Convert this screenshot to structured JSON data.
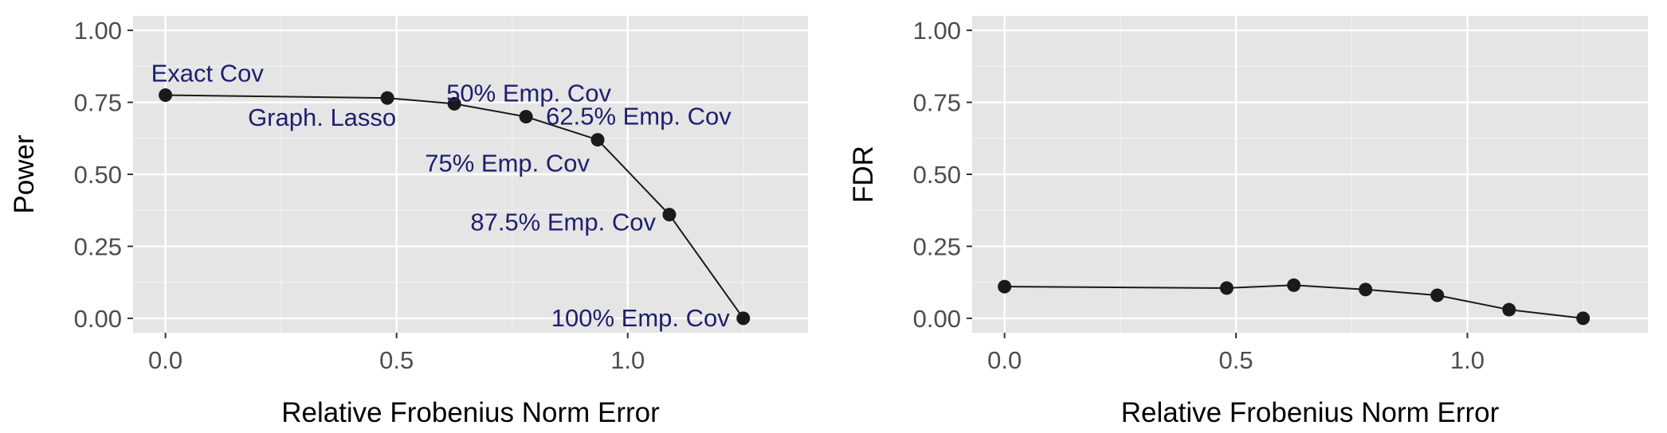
{
  "chart_data": [
    {
      "type": "line",
      "xlabel": "Relative Frobenius Norm Error",
      "ylabel": "Power",
      "xlim": [
        -0.07,
        1.39
      ],
      "ylim": [
        -0.05,
        1.05
      ],
      "xticks": [
        "0.0",
        "0.5",
        "1.0"
      ],
      "yticks": [
        "0.00",
        "0.25",
        "0.50",
        "0.75",
        "1.00"
      ],
      "grid": true,
      "background": "#e5e5e5",
      "line_color": "#1a1a1a",
      "annotation_color": "#1f1f6e",
      "series": [
        {
          "x": [
            0.0,
            0.48,
            0.625,
            0.78,
            0.935,
            1.09,
            1.25
          ],
          "y": [
            0.775,
            0.765,
            0.745,
            0.7,
            0.62,
            0.36,
            0.0
          ],
          "labels": [
            "Exact Cov",
            "Graph. Lasso",
            "50% Emp. Cov",
            "62.5% Emp. Cov",
            "75% Emp. Cov",
            "87.5% Emp. Cov",
            "100% Emp. Cov"
          ]
        }
      ]
    },
    {
      "type": "line",
      "xlabel": "Relative Frobenius Norm Error",
      "ylabel": "FDR",
      "xlim": [
        -0.07,
        1.39
      ],
      "ylim": [
        -0.05,
        1.05
      ],
      "xticks": [
        "0.0",
        "0.5",
        "1.0"
      ],
      "yticks": [
        "0.00",
        "0.25",
        "0.50",
        "0.75",
        "1.00"
      ],
      "grid": true,
      "background": "#e5e5e5",
      "line_color": "#1a1a1a",
      "series": [
        {
          "x": [
            0.0,
            0.48,
            0.625,
            0.78,
            0.935,
            1.09,
            1.25
          ],
          "y": [
            0.11,
            0.105,
            0.115,
            0.1,
            0.08,
            0.03,
            0.0
          ]
        }
      ]
    }
  ]
}
